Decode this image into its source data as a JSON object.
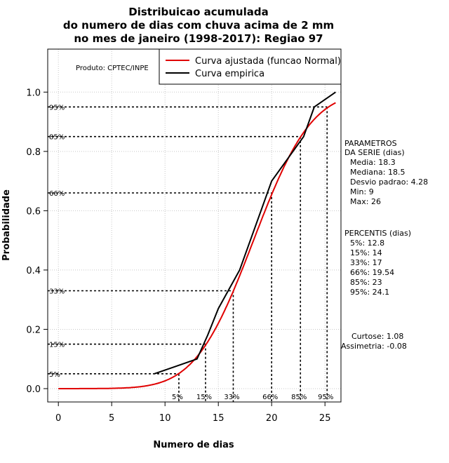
{
  "title_lines": [
    "Distribuicao acumulada",
    "do numero de dias com chuva acima de 2 mm",
    "no mes de janeiro (1998-2017): Regiao 97"
  ],
  "produto": "Produto: CPTEC/INPE",
  "parametros": {
    "header": [
      "PARAMETROS",
      "DA SERIE (dias)"
    ],
    "items": [
      "Media: 18.3",
      "Mediana: 18.5",
      "Desvio padrao: 4.28",
      "Min: 9",
      "Max: 26"
    ]
  },
  "percentis": {
    "header": "PERCENTIS (dias)",
    "items": [
      "5%: 12.8",
      "15%: 14",
      "33%: 17",
      "66%: 19.54",
      "85%: 23",
      "95%: 24.1"
    ]
  },
  "extra": {
    "curtose": "Curtose: 1.08",
    "assimetria": "Assimetria: -0.08"
  },
  "colors": {
    "fitted": "#e00000",
    "empirical": "#000000",
    "grid": "#c8c8c8"
  },
  "chart_data": {
    "type": "line",
    "xlabel": "Numero de dias",
    "ylabel": "Probabilidade",
    "xlim": [
      -1,
      26.5
    ],
    "ylim": [
      -0.045,
      1.145
    ],
    "xticks": [
      0,
      5,
      10,
      15,
      20,
      25
    ],
    "yticks": [
      0.0,
      0.2,
      0.4,
      0.6,
      0.8,
      1.0
    ],
    "xtick_labels": [
      "0",
      "5",
      "10",
      "15",
      "20",
      "25"
    ],
    "ytick_labels": [
      "0.0",
      "0.2",
      "0.4",
      "0.6",
      "0.8",
      "1.0"
    ],
    "legend": [
      "Curva ajustada (funcao Normal)",
      "Curva empirica"
    ],
    "series": [
      {
        "name": "Curva ajustada (funcao Normal)",
        "kind": "normal_cdf",
        "mean": 18.3,
        "sd": 4.28,
        "x_range": [
          0,
          26
        ]
      },
      {
        "name": "Curva empirica",
        "x": [
          9,
          11,
          13,
          14,
          15,
          17,
          20,
          22,
          23,
          24,
          26
        ],
        "y": [
          0.05,
          0.075,
          0.1,
          0.18,
          0.27,
          0.4,
          0.7,
          0.8,
          0.85,
          0.95,
          1.0
        ]
      }
    ],
    "percentile_guides": [
      {
        "label": "5%",
        "prob": 0.05,
        "value": 11.3
      },
      {
        "label": "15%",
        "prob": 0.15,
        "value": 13.8
      },
      {
        "label": "33%",
        "prob": 0.33,
        "value": 16.4
      },
      {
        "label": "66%",
        "prob": 0.66,
        "value": 20.0
      },
      {
        "label": "85%",
        "prob": 0.85,
        "value": 22.7
      },
      {
        "label": "95%",
        "prob": 0.95,
        "value": 25.2
      }
    ]
  }
}
